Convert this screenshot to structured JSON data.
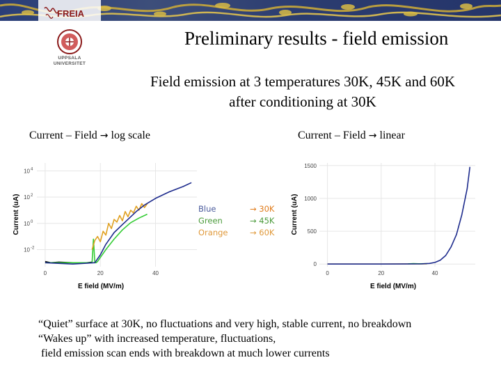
{
  "slide": {
    "title": "Preliminary results - field emission",
    "subtitle_line1": "Field emission at 3 temperatures 30K, 45K and 60K",
    "subtitle_line2": "after conditioning at 30K"
  },
  "logos": {
    "freia": "FREIA",
    "uppsala_line1": "UPPSALA",
    "uppsala_line2": "UNIVERSITET"
  },
  "captions": {
    "log": {
      "text": "Current – Field",
      "arrow": "→",
      "suffix": "log scale"
    },
    "linear": {
      "text": "Current – Field",
      "arrow": "→",
      "suffix": "linear"
    }
  },
  "legend": [
    {
      "name": "Blue",
      "arrow": "→",
      "temp": "30K",
      "name_color": "#4a5b9c",
      "temp_color": "#e07b1a"
    },
    {
      "name": "Green",
      "arrow": "→",
      "temp": "45K",
      "name_color": "#4a9a3a",
      "temp_color": "#4a9a3a"
    },
    {
      "name": "Orange",
      "arrow": "→",
      "temp": "60K",
      "name_color": "#e0993a",
      "temp_color": "#e0993a"
    }
  ],
  "notes": [
    "“Quiet” surface at 30K, no fluctuations and very high, stable current, no breakdown",
    "“Wakes up” with increased temperature, fluctuations,",
    " field emission scan ends with breakdown at much lower currents"
  ],
  "colors": {
    "blue": "#1c2a8c",
    "green": "#33cc33",
    "orange": "#e0a020",
    "black": "#111111"
  },
  "chart_data": [
    {
      "type": "line",
      "scale": "log",
      "xlabel": "E field (MV/m)",
      "ylabel": "Current (uA)",
      "xlim": [
        -3,
        55
      ],
      "x_ticks": [
        0,
        20,
        40
      ],
      "y_ticks": [
        {
          "value": -2,
          "label": "10",
          "sup": "-2"
        },
        {
          "value": 0,
          "label": "10",
          "sup": "0"
        },
        {
          "value": 2,
          "label": "10",
          "sup": "2"
        },
        {
          "value": 4,
          "label": "10",
          "sup": "4"
        }
      ],
      "ylim": [
        -3.3,
        4.6
      ],
      "grid": true,
      "series": [
        {
          "color_key": "black",
          "x": [
            0,
            2,
            5,
            10,
            15,
            17
          ],
          "y": [
            -2.9,
            -3.0,
            -2.95,
            -3.0,
            -3.0,
            -2.95
          ]
        },
        {
          "color_key": "green",
          "x": [
            0,
            5,
            10,
            15,
            17,
            17.5,
            18,
            18.5,
            19,
            20,
            22,
            25,
            28,
            31,
            34,
            37
          ],
          "y": [
            -3.0,
            -3.0,
            -3.0,
            -3.0,
            -3.0,
            -1.2,
            -3.0,
            -3.0,
            -2.9,
            -2.6,
            -2.0,
            -1.2,
            -0.5,
            0.05,
            0.4,
            0.7
          ]
        },
        {
          "color_key": "orange",
          "x": [
            17,
            18,
            19,
            20,
            21,
            22,
            23,
            24,
            25,
            26,
            27,
            28,
            29,
            30,
            31,
            32,
            33,
            34,
            35,
            36,
            37
          ],
          "y": [
            -2.0,
            -1.3,
            -1.0,
            -1.4,
            -0.6,
            -0.9,
            0.0,
            -0.4,
            0.3,
            0.1,
            0.6,
            0.2,
            0.9,
            0.5,
            1.0,
            0.8,
            1.3,
            1.0,
            1.5,
            1.2,
            1.5
          ]
        },
        {
          "color_key": "blue",
          "x": [
            0,
            10,
            18,
            19,
            20,
            22,
            25,
            28,
            30,
            33,
            36,
            40,
            45,
            50,
            53
          ],
          "y": [
            -3.0,
            -3.1,
            -3.0,
            -2.7,
            -2.4,
            -1.6,
            -0.7,
            -0.1,
            0.3,
            0.9,
            1.4,
            1.9,
            2.4,
            2.8,
            3.1
          ]
        }
      ]
    },
    {
      "type": "line",
      "scale": "linear",
      "xlabel": "E field (MV/m)",
      "ylabel": "Current (uA)",
      "xlim": [
        -3,
        55
      ],
      "x_ticks": [
        0,
        20,
        40
      ],
      "y_ticks": [
        {
          "value": 0,
          "label": "0"
        },
        {
          "value": 500,
          "label": "500"
        },
        {
          "value": 1000,
          "label": "1000"
        },
        {
          "value": 1500,
          "label": "1500"
        }
      ],
      "ylim": [
        -40,
        1540
      ],
      "grid": true,
      "series": [
        {
          "color_key": "orange",
          "x": [
            0,
            10,
            20,
            30,
            37
          ],
          "y": [
            0,
            0,
            0,
            2,
            3
          ]
        },
        {
          "color_key": "green",
          "x": [
            30,
            32,
            34,
            36,
            37
          ],
          "y": [
            4,
            8,
            5,
            6,
            6
          ]
        },
        {
          "color_key": "blue",
          "x": [
            0,
            10,
            20,
            30,
            35,
            38,
            40,
            42,
            44,
            46,
            48,
            50,
            52,
            53
          ],
          "y": [
            0,
            0,
            0,
            1,
            3,
            10,
            25,
            60,
            130,
            260,
            450,
            750,
            1150,
            1480
          ]
        }
      ]
    }
  ]
}
